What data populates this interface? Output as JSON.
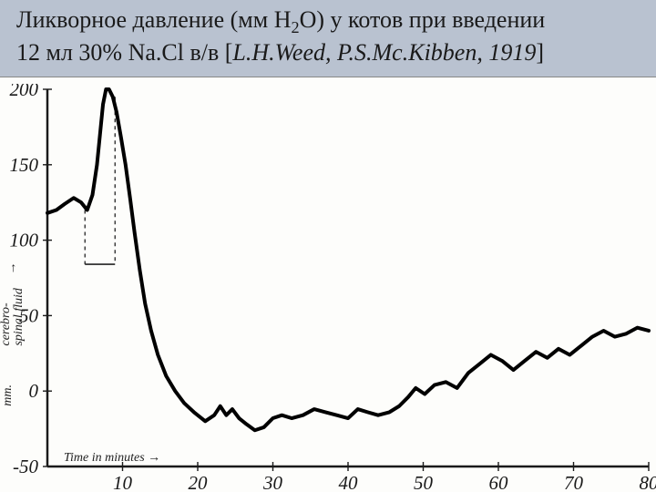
{
  "title": {
    "line1_a": "Ликворное давление (мм ",
    "line1_h": "H",
    "line1_sub": "2",
    "line1_o": "O) у котов при введении",
    "line2_a": "12 мл 30% Na.Cl в/в [",
    "line2_ital": "L.H.Weed, P.S.Mc.Kibben, 1919",
    "line2_b": "]",
    "title_fontsize": 26,
    "bar_bg": "#b9c2d0",
    "text_color": "#1a1a1a"
  },
  "chart": {
    "type": "line",
    "bg_color": "#fdfdfb",
    "axis_color": "#1a1a1a",
    "grid_color": "#3a3a3a",
    "line_color": "#000000",
    "line_width": 4,
    "dashed_color": "#222222",
    "xlabel": "Time in minutes →",
    "ylabel_top": "cerebro-",
    "ylabel_bot": "spinal fluid",
    "ylabel_arrow": "→",
    "xlim": [
      0,
      80
    ],
    "ylim": [
      -50,
      200
    ],
    "xtick_step": 10,
    "ytick_step": 50,
    "xticks": [
      10,
      20,
      30,
      40,
      50,
      60,
      70,
      80
    ],
    "yticks": [
      -50,
      0,
      50,
      100,
      150,
      200
    ],
    "ytick_labels": [
      "-50",
      "0",
      "50",
      "100",
      "150",
      "200"
    ],
    "tick_fontsize": 21,
    "axis_label_fontsize": 14,
    "inner_frame_width": 1.2,
    "inject_start_x": 5,
    "inject_end_x": 9,
    "inject_level_y": 84,
    "series": [
      {
        "x": 0,
        "y": 118
      },
      {
        "x": 1.2,
        "y": 120
      },
      {
        "x": 2.3,
        "y": 124
      },
      {
        "x": 3.5,
        "y": 128
      },
      {
        "x": 4.5,
        "y": 125
      },
      {
        "x": 5.3,
        "y": 120
      },
      {
        "x": 6.0,
        "y": 130
      },
      {
        "x": 6.6,
        "y": 150
      },
      {
        "x": 7.0,
        "y": 170
      },
      {
        "x": 7.4,
        "y": 190
      },
      {
        "x": 7.8,
        "y": 200
      },
      {
        "x": 8.2,
        "y": 200
      },
      {
        "x": 8.7,
        "y": 195
      },
      {
        "x": 9.2,
        "y": 185
      },
      {
        "x": 9.8,
        "y": 168
      },
      {
        "x": 10.4,
        "y": 150
      },
      {
        "x": 11.0,
        "y": 128
      },
      {
        "x": 11.6,
        "y": 105
      },
      {
        "x": 12.3,
        "y": 80
      },
      {
        "x": 13.0,
        "y": 58
      },
      {
        "x": 13.8,
        "y": 40
      },
      {
        "x": 14.7,
        "y": 24
      },
      {
        "x": 15.8,
        "y": 10
      },
      {
        "x": 17.0,
        "y": 0
      },
      {
        "x": 18.2,
        "y": -8
      },
      {
        "x": 19.5,
        "y": -14
      },
      {
        "x": 21.0,
        "y": -20
      },
      {
        "x": 22.2,
        "y": -16
      },
      {
        "x": 23.0,
        "y": -10
      },
      {
        "x": 23.8,
        "y": -16
      },
      {
        "x": 24.6,
        "y": -12
      },
      {
        "x": 25.5,
        "y": -18
      },
      {
        "x": 26.5,
        "y": -22
      },
      {
        "x": 27.6,
        "y": -26
      },
      {
        "x": 28.8,
        "y": -24
      },
      {
        "x": 30.0,
        "y": -18
      },
      {
        "x": 31.2,
        "y": -16
      },
      {
        "x": 32.5,
        "y": -18
      },
      {
        "x": 34.0,
        "y": -16
      },
      {
        "x": 35.5,
        "y": -12
      },
      {
        "x": 37.0,
        "y": -14
      },
      {
        "x": 38.5,
        "y": -16
      },
      {
        "x": 40.0,
        "y": -18
      },
      {
        "x": 41.3,
        "y": -12
      },
      {
        "x": 42.6,
        "y": -14
      },
      {
        "x": 44.0,
        "y": -16
      },
      {
        "x": 45.5,
        "y": -14
      },
      {
        "x": 46.8,
        "y": -10
      },
      {
        "x": 48.0,
        "y": -4
      },
      {
        "x": 49.0,
        "y": 2
      },
      {
        "x": 50.2,
        "y": -2
      },
      {
        "x": 51.5,
        "y": 4
      },
      {
        "x": 53.0,
        "y": 6
      },
      {
        "x": 54.5,
        "y": 2
      },
      {
        "x": 56.0,
        "y": 12
      },
      {
        "x": 57.5,
        "y": 18
      },
      {
        "x": 59.0,
        "y": 24
      },
      {
        "x": 60.5,
        "y": 20
      },
      {
        "x": 62.0,
        "y": 14
      },
      {
        "x": 63.5,
        "y": 20
      },
      {
        "x": 65.0,
        "y": 26
      },
      {
        "x": 66.5,
        "y": 22
      },
      {
        "x": 68.0,
        "y": 28
      },
      {
        "x": 69.5,
        "y": 24
      },
      {
        "x": 71.0,
        "y": 30
      },
      {
        "x": 72.5,
        "y": 36
      },
      {
        "x": 74.0,
        "y": 40
      },
      {
        "x": 75.5,
        "y": 36
      },
      {
        "x": 77.0,
        "y": 38
      },
      {
        "x": 78.5,
        "y": 42
      },
      {
        "x": 80.0,
        "y": 40
      }
    ]
  }
}
